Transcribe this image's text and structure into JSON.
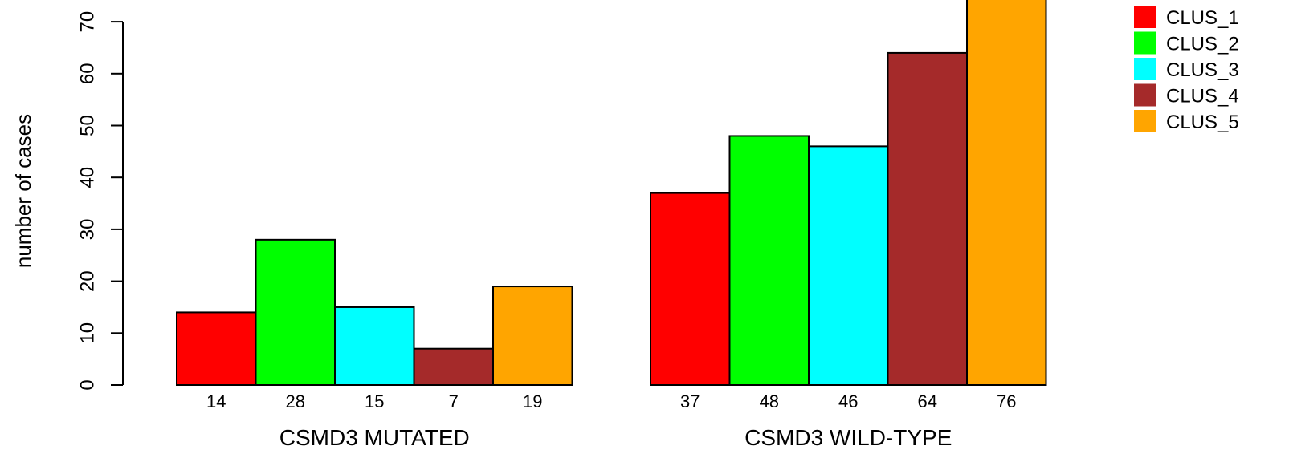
{
  "chart_data": {
    "type": "bar",
    "ylabel": "number of cases",
    "ylim": [
      0,
      76
    ],
    "yticks": [
      0,
      10,
      20,
      30,
      40,
      50,
      60,
      70
    ],
    "groups": [
      {
        "label": "CSMD3 MUTATED",
        "values": [
          14,
          28,
          15,
          7,
          19
        ]
      },
      {
        "label": "CSMD3 WILD-TYPE",
        "values": [
          37,
          48,
          46,
          64,
          76
        ]
      }
    ],
    "series": [
      {
        "name": "CLUS_1",
        "color": "#ff0000"
      },
      {
        "name": "CLUS_2",
        "color": "#00ff00"
      },
      {
        "name": "CLUS_3",
        "color": "#00ffff"
      },
      {
        "name": "CLUS_4",
        "color": "#a52a2a"
      },
      {
        "name": "CLUS_5",
        "color": "#ffa500"
      }
    ],
    "legend_position": "top-right"
  }
}
